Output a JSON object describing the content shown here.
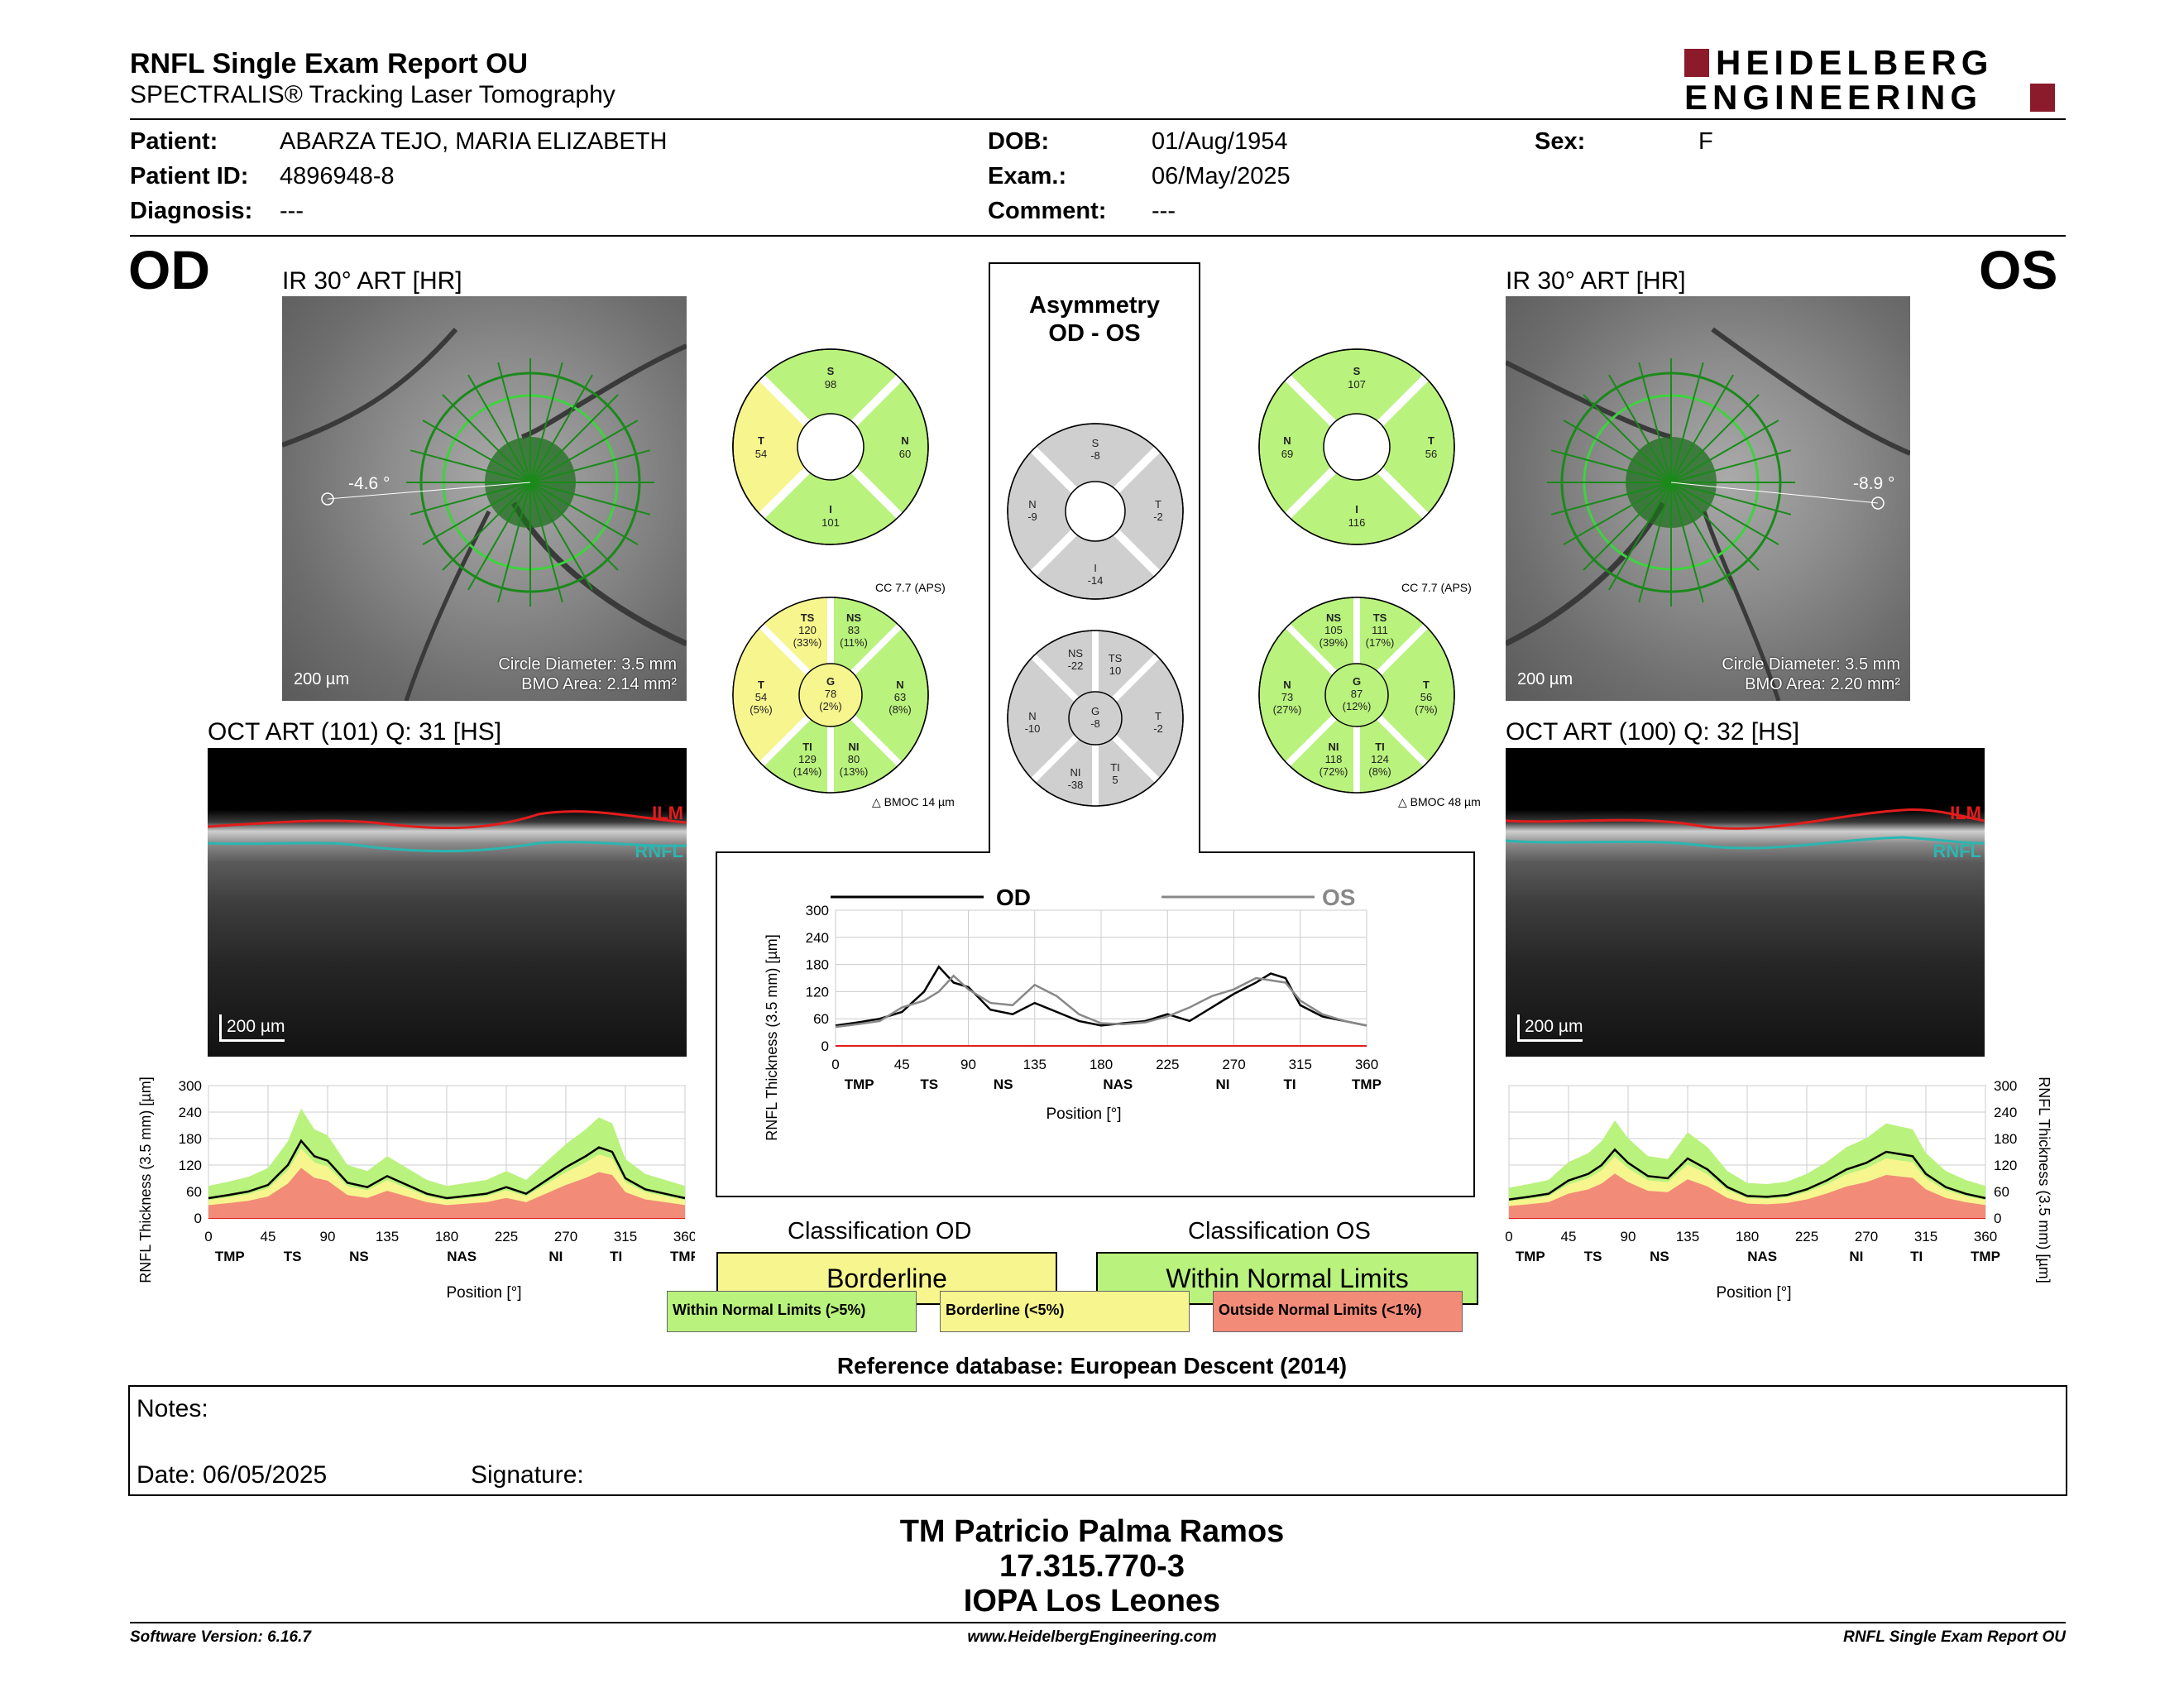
{
  "header": {
    "title": "RNFL Single Exam Report OU",
    "subtitle": "SPECTRALIS® Tracking Laser Tomography",
    "logo_line1": "HEIDELBERG",
    "logo_line2": "ENGINEERING"
  },
  "patient": {
    "patient_label": "Patient:",
    "patient_value": "ABARZA TEJO, MARIA ELIZABETH",
    "id_label": "Patient ID:",
    "id_value": "4896948-8",
    "diag_label": "Diagnosis:",
    "diag_value": "---",
    "dob_label": "DOB:",
    "dob_value": "01/Aug/1954",
    "exam_label": "Exam.:",
    "exam_value": "06/May/2025",
    "comment_label": "Comment:",
    "comment_value": "---",
    "sex_label": "Sex:",
    "sex_value": "F"
  },
  "od": {
    "eye": "OD",
    "ir_title": "IR 30° ART [HR]",
    "angle": "-4.6 °",
    "circle_diameter": "Circle Diameter: 3.5 mm",
    "bmo_area": "BMO Area: 2.14 mm²",
    "scale": "200 µm",
    "oct_title": "OCT ART (101) Q: 31 [HS]",
    "oct_scale": "200 µm",
    "ilm": "ILM",
    "rnfl": "RNFL",
    "sectors4": {
      "S": "98",
      "N": "60",
      "I": "101",
      "T": "54"
    },
    "cc": "CC 7.7 (APS)",
    "bmoc": "BMOC 14 µm",
    "sectors6": {
      "TS": [
        "120",
        "(33%)"
      ],
      "NS": [
        "83",
        "(11%)"
      ],
      "T": [
        "54",
        "(5%)"
      ],
      "G": [
        "78",
        "(2%)"
      ],
      "N": [
        "63",
        "(8%)"
      ],
      "TI": [
        "129",
        "(14%)"
      ],
      "NI": [
        "80",
        "(13%)"
      ]
    },
    "classification_head": "Classification OD",
    "classification": "Borderline"
  },
  "os": {
    "eye": "OS",
    "ir_title": "IR 30° ART [HR]",
    "angle": "-8.9 °",
    "circle_diameter": "Circle Diameter: 3.5 mm",
    "bmo_area": "BMO Area: 2.20 mm²",
    "scale": "200 µm",
    "oct_title": "OCT ART (100) Q: 32 [HS]",
    "oct_scale": "200 µm",
    "ilm": "ILM",
    "rnfl": "RNFL",
    "sectors4": {
      "S": "107",
      "N": "69",
      "I": "116",
      "T": "56"
    },
    "cc": "CC 7.7 (APS)",
    "bmoc": "BMOC 48 µm",
    "sectors6": {
      "NS": [
        "105",
        "(39%)"
      ],
      "TS": [
        "111",
        "(17%)"
      ],
      "N": [
        "73",
        "(27%)"
      ],
      "G": [
        "87",
        "(12%)"
      ],
      "T": [
        "56",
        "(7%)"
      ],
      "NI": [
        "118",
        "(72%)"
      ],
      "TI": [
        "124",
        "(8%)"
      ]
    },
    "classification_head": "Classification OS",
    "classification": "Within Normal Limits"
  },
  "asymmetry": {
    "title_line1": "Asymmetry",
    "title_line2": "OD - OS",
    "sectors4": {
      "S": "-8",
      "N": "-9",
      "T": "-2",
      "I": "-14"
    },
    "sectors6": {
      "NS": "-22",
      "TS": "10",
      "N": "-10",
      "G": "-8",
      "T": "-2",
      "NI": "-38",
      "TI": "5"
    }
  },
  "colors": {
    "normal": "#b9f27c",
    "borderline": "#f7f58e",
    "outside": "#f28b78",
    "asym_gray": "#cfcfcf",
    "od_line": "#000000",
    "os_line": "#888888",
    "logo_red": "#8b1a2b"
  },
  "legend": {
    "normal": "Within Normal Limits (>5%)",
    "borderline": "Borderline (<5%)",
    "outside": "Outside Normal Limits (<1%)"
  },
  "reference_db": "Reference database: European Descent (2014)",
  "notes": {
    "notes_label": "Notes:",
    "date_label": "Date: 06/05/2025",
    "signature_label": "Signature:"
  },
  "signature_block": {
    "name": "TM Patricio Palma Ramos",
    "id": "17.315.770-3",
    "org": "IOPA Los Leones"
  },
  "footer": {
    "left": "Software Version: 6.16.7",
    "center": "www.HeidelbergEngineering.com",
    "right": "RNFL Single Exam Report OU"
  },
  "chart_data": [
    {
      "type": "line",
      "legend_od": "OD",
      "legend_os": "OS",
      "ylabel": "RNFL Thickness (3.5 mm) [µm]",
      "xlabel": "Position [°]",
      "xticks": [
        "0",
        "45",
        "90",
        "135",
        "180",
        "225",
        "270",
        "315",
        "360"
      ],
      "yticks": [
        "0",
        "60",
        "120",
        "180",
        "240",
        "300"
      ],
      "sector_labels": [
        "TMP",
        "TS",
        "NS",
        "NAS",
        "NI",
        "TI",
        "TMP"
      ],
      "ylim": [
        0,
        300
      ],
      "xlim": [
        0,
        360
      ],
      "x": [
        0,
        15,
        30,
        45,
        60,
        70,
        80,
        90,
        105,
        120,
        135,
        150,
        165,
        180,
        195,
        210,
        225,
        240,
        255,
        270,
        285,
        295,
        305,
        315,
        330,
        345,
        360
      ],
      "series": [
        {
          "name": "OD",
          "values": [
            45,
            52,
            60,
            75,
            120,
            175,
            140,
            130,
            80,
            70,
            95,
            75,
            55,
            45,
            50,
            55,
            70,
            55,
            85,
            115,
            140,
            160,
            150,
            90,
            65,
            55,
            45
          ]
        },
        {
          "name": "OS",
          "values": [
            42,
            48,
            55,
            85,
            100,
            120,
            155,
            125,
            95,
            90,
            135,
            110,
            70,
            50,
            48,
            52,
            65,
            85,
            110,
            125,
            150,
            145,
            140,
            100,
            70,
            55,
            45
          ]
        }
      ]
    },
    {
      "type": "line",
      "ylabel": "RNFL Thickness (3.5 mm) [µm]",
      "xlabel": "Position [°]",
      "xticks": [
        "0",
        "45",
        "90",
        "135",
        "180",
        "225",
        "270",
        "315",
        "360"
      ],
      "yticks": [
        "0",
        "60",
        "120",
        "180",
        "240",
        "300"
      ],
      "sector_labels": [
        "TMP",
        "TS",
        "NS",
        "NAS",
        "NI",
        "TI",
        "TMP"
      ],
      "ylim": [
        0,
        300
      ],
      "xlim": [
        0,
        360
      ],
      "x": [
        0,
        15,
        30,
        45,
        60,
        70,
        80,
        90,
        105,
        120,
        135,
        150,
        165,
        180,
        195,
        210,
        225,
        240,
        255,
        270,
        285,
        295,
        305,
        315,
        330,
        345,
        360
      ],
      "series": [
        {
          "name": "OD",
          "values": [
            45,
            52,
            60,
            75,
            120,
            175,
            140,
            130,
            80,
            70,
            95,
            75,
            55,
            45,
            50,
            55,
            70,
            55,
            85,
            115,
            140,
            160,
            150,
            90,
            65,
            55,
            45
          ]
        }
      ]
    },
    {
      "type": "line",
      "ylabel": "RNFL Thickness (3.5 mm) [µm]",
      "xlabel": "Position [°]",
      "xticks": [
        "0",
        "45",
        "90",
        "135",
        "180",
        "225",
        "270",
        "315",
        "360"
      ],
      "yticks": [
        "0",
        "60",
        "120",
        "180",
        "240",
        "300"
      ],
      "sector_labels": [
        "TMP",
        "TS",
        "NS",
        "NAS",
        "NI",
        "TI",
        "TMP"
      ],
      "ylim": [
        0,
        300
      ],
      "xlim": [
        0,
        360
      ],
      "x": [
        0,
        15,
        30,
        45,
        60,
        70,
        80,
        90,
        105,
        120,
        135,
        150,
        165,
        180,
        195,
        210,
        225,
        240,
        255,
        270,
        285,
        295,
        305,
        315,
        330,
        345,
        360
      ],
      "series": [
        {
          "name": "OS",
          "values": [
            42,
            48,
            55,
            85,
            100,
            120,
            155,
            125,
            95,
            90,
            135,
            110,
            70,
            50,
            48,
            52,
            65,
            85,
            110,
            125,
            150,
            145,
            140,
            100,
            70,
            55,
            45
          ]
        }
      ]
    }
  ]
}
